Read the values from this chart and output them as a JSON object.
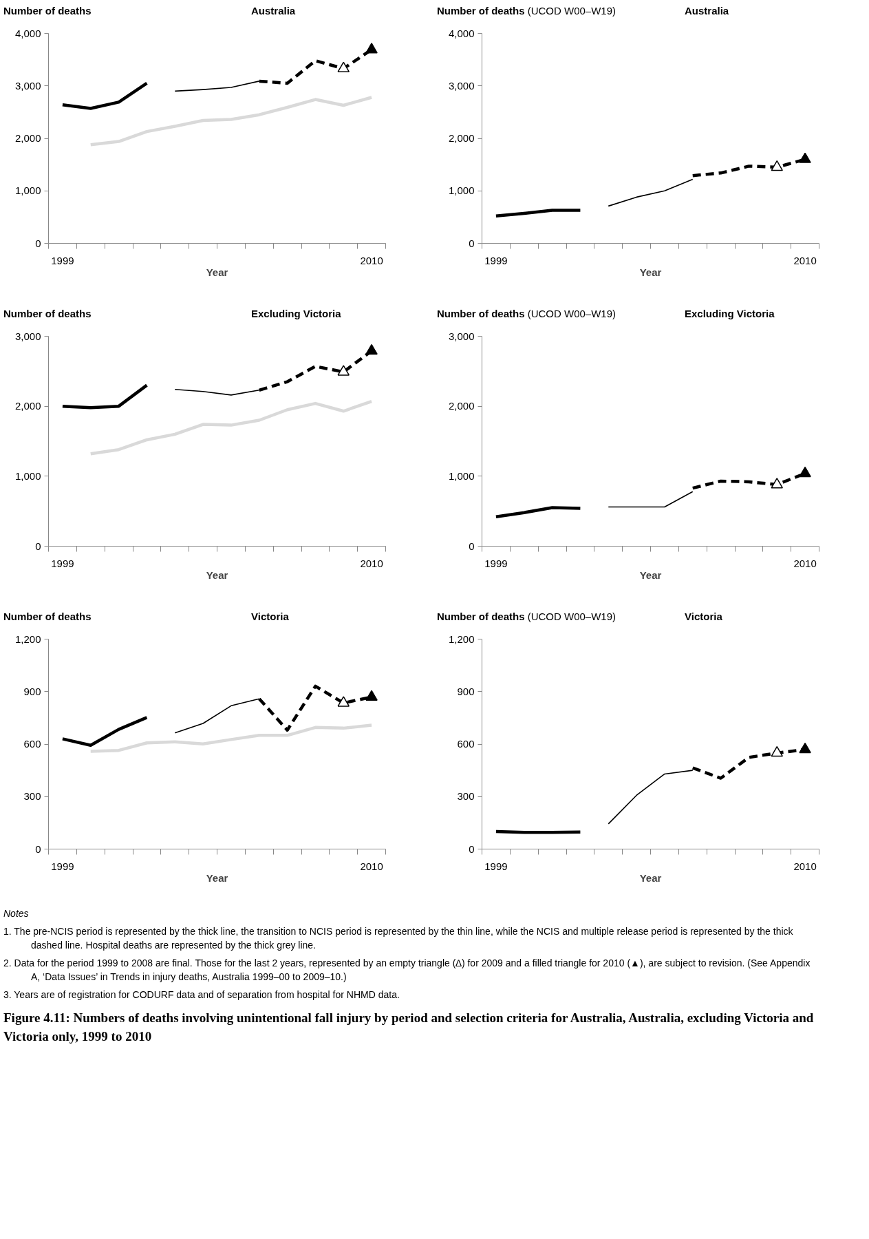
{
  "chart_data": [
    {
      "type": "line",
      "title": "Australia",
      "ylabel": "Number of deaths",
      "xlabel": "Year",
      "x": [
        1999,
        2000,
        2001,
        2002,
        2003,
        2004,
        2005,
        2006,
        2007,
        2008,
        2009,
        2010
      ],
      "xlim": [
        1998.5,
        2010.5
      ],
      "xticks": [
        {
          "value": 1998.5,
          "label": null
        },
        {
          "value": 1999,
          "label": "1999"
        },
        {
          "value": 1999.5,
          "label": null
        },
        {
          "value": 2000.5,
          "label": null
        },
        {
          "value": 2001.5,
          "label": null
        },
        {
          "value": 2002.5,
          "label": null
        },
        {
          "value": 2003.5,
          "label": null
        },
        {
          "value": 2004.5,
          "label": null
        },
        {
          "value": 2005.5,
          "label": null
        },
        {
          "value": 2006.5,
          "label": null
        },
        {
          "value": 2007.5,
          "label": null
        },
        {
          "value": 2008.5,
          "label": null
        },
        {
          "value": 2009.5,
          "label": null
        },
        {
          "value": 2010,
          "label": "2010"
        },
        {
          "value": 2010.5,
          "label": null
        }
      ],
      "ylim": [
        0,
        4000
      ],
      "yticks": [
        0,
        {
          "value": 1000,
          "label": "1,000"
        },
        {
          "value": 2000,
          "label": "2,000"
        },
        {
          "value": 3000,
          "label": "3,000"
        },
        {
          "value": 4000,
          "label": "4,000"
        }
      ],
      "series": [
        {
          "color": "#000000",
          "line_style": "solid",
          "values": [
            2640,
            2570,
            2690,
            3050,
            null,
            null,
            null,
            null,
            null,
            null,
            null,
            null
          ]
        },
        {
          "color": "#000000",
          "line_style": "solid",
          "values": [
            null,
            null,
            null,
            null,
            2900,
            2930,
            2970,
            3090,
            null,
            null,
            null,
            null
          ]
        },
        {
          "color": "#d9d9d9",
          "line_style": "solid",
          "values": [
            null,
            1880,
            1940,
            2130,
            2230,
            2340,
            2360,
            2450,
            2590,
            2740,
            2630,
            2780
          ]
        },
        {
          "color": "#000000",
          "line_style": "dashed",
          "values": [
            null,
            null,
            null,
            null,
            null,
            null,
            null,
            3090,
            3050,
            3480,
            3330,
            3690
          ]
        },
        {
          "type": "scatter",
          "color": "#ffffff",
          "marker": "triangle",
          "values": [
            null,
            null,
            null,
            null,
            null,
            null,
            null,
            null,
            null,
            null,
            3330,
            null
          ]
        },
        {
          "type": "scatter",
          "color": "#000000",
          "marker": "triangle",
          "values": [
            null,
            null,
            null,
            null,
            null,
            null,
            null,
            null,
            null,
            null,
            null,
            3690
          ]
        }
      ]
    },
    {
      "type": "line",
      "title": "Australia",
      "ylabel": "Number of deaths (UCOD W00–W19)",
      "xlabel": "Year",
      "x": [
        1999,
        2000,
        2001,
        2002,
        2003,
        2004,
        2005,
        2006,
        2007,
        2008,
        2009,
        2010
      ],
      "xlim": [
        1998.5,
        2010.5
      ],
      "xticks": [
        {
          "value": 1998.5,
          "label": null
        },
        {
          "value": 1999,
          "label": "1999"
        },
        {
          "value": 1999.5,
          "label": null
        },
        {
          "value": 2000.5,
          "label": null
        },
        {
          "value": 2001.5,
          "label": null
        },
        {
          "value": 2002.5,
          "label": null
        },
        {
          "value": 2003.5,
          "label": null
        },
        {
          "value": 2004.5,
          "label": null
        },
        {
          "value": 2005.5,
          "label": null
        },
        {
          "value": 2006.5,
          "label": null
        },
        {
          "value": 2007.5,
          "label": null
        },
        {
          "value": 2008.5,
          "label": null
        },
        {
          "value": 2009.5,
          "label": null
        },
        {
          "value": 2010,
          "label": "2010"
        },
        {
          "value": 2010.5,
          "label": null
        }
      ],
      "ylim": [
        0,
        4000
      ],
      "yticks": [
        0,
        {
          "value": 1000,
          "label": "1,000"
        },
        {
          "value": 2000,
          "label": "2,000"
        },
        {
          "value": 3000,
          "label": "3,000"
        },
        {
          "value": 4000,
          "label": "4,000"
        }
      ],
      "series": [
        {
          "color": "#000000",
          "line_style": "solid",
          "values": [
            520,
            570,
            630,
            630,
            null,
            null,
            null,
            null,
            null,
            null,
            null,
            null
          ]
        },
        {
          "color": "#000000",
          "line_style": "solid",
          "values": [
            null,
            null,
            null,
            null,
            710,
            880,
            1000,
            1220,
            null,
            null,
            null,
            null
          ]
        },
        {
          "color": "#000000",
          "line_style": "dashed",
          "values": [
            null,
            null,
            null,
            null,
            null,
            null,
            null,
            1290,
            1340,
            1470,
            1450,
            1600
          ]
        },
        {
          "type": "scatter",
          "color": "#ffffff",
          "marker": "triangle",
          "values": [
            null,
            null,
            null,
            null,
            null,
            null,
            null,
            null,
            null,
            null,
            1450,
            null
          ]
        },
        {
          "type": "scatter",
          "color": "#000000",
          "marker": "triangle",
          "values": [
            null,
            null,
            null,
            null,
            null,
            null,
            null,
            null,
            null,
            null,
            null,
            1600
          ]
        }
      ]
    },
    {
      "type": "line",
      "title": "Excluding Victoria",
      "ylabel": "Number of deaths",
      "xlabel": "Year",
      "x": [
        1999,
        2000,
        2001,
        2002,
        2003,
        2004,
        2005,
        2006,
        2007,
        2008,
        2009,
        2010
      ],
      "xlim": [
        1998.5,
        2010.5
      ],
      "xticks": [
        {
          "value": 1998.5,
          "label": null
        },
        {
          "value": 1999,
          "label": "1999"
        },
        {
          "value": 1999.5,
          "label": null
        },
        {
          "value": 2000.5,
          "label": null
        },
        {
          "value": 2001.5,
          "label": null
        },
        {
          "value": 2002.5,
          "label": null
        },
        {
          "value": 2003.5,
          "label": null
        },
        {
          "value": 2004.5,
          "label": null
        },
        {
          "value": 2005.5,
          "label": null
        },
        {
          "value": 2006.5,
          "label": null
        },
        {
          "value": 2007.5,
          "label": null
        },
        {
          "value": 2008.5,
          "label": null
        },
        {
          "value": 2009.5,
          "label": null
        },
        {
          "value": 2010,
          "label": "2010"
        },
        {
          "value": 2010.5,
          "label": null
        }
      ],
      "ylim": [
        0,
        3000
      ],
      "yticks": [
        0,
        {
          "value": 1000,
          "label": "1,000"
        },
        {
          "value": 2000,
          "label": "2,000"
        },
        {
          "value": 3000,
          "label": "3,000"
        }
      ],
      "series": [
        {
          "color": "#000000",
          "line_style": "solid",
          "values": [
            2000,
            1980,
            2000,
            2300,
            null,
            null,
            null,
            null,
            null,
            null,
            null,
            null
          ]
        },
        {
          "color": "#000000",
          "line_style": "solid",
          "values": [
            null,
            null,
            null,
            null,
            2240,
            2210,
            2160,
            2230,
            null,
            null,
            null,
            null
          ]
        },
        {
          "color": "#d9d9d9",
          "line_style": "solid",
          "values": [
            null,
            1320,
            1380,
            1520,
            1600,
            1740,
            1730,
            1800,
            1950,
            2040,
            1930,
            2070
          ]
        },
        {
          "color": "#000000",
          "line_style": "dashed",
          "values": [
            null,
            null,
            null,
            null,
            null,
            null,
            null,
            2230,
            2350,
            2570,
            2490,
            2790
          ]
        },
        {
          "type": "scatter",
          "color": "#ffffff",
          "marker": "triangle",
          "values": [
            null,
            null,
            null,
            null,
            null,
            null,
            null,
            null,
            null,
            null,
            2490,
            null
          ]
        },
        {
          "type": "scatter",
          "color": "#000000",
          "marker": "triangle",
          "values": [
            null,
            null,
            null,
            null,
            null,
            null,
            null,
            null,
            null,
            null,
            null,
            2790
          ]
        }
      ]
    },
    {
      "type": "line",
      "title": "Excluding Victoria",
      "ylabel": "Number of deaths (UCOD W00–W19)",
      "xlabel": "Year",
      "x": [
        1999,
        2000,
        2001,
        2002,
        2003,
        2004,
        2005,
        2006,
        2007,
        2008,
        2009,
        2010
      ],
      "xlim": [
        1998.5,
        2010.5
      ],
      "xticks": [
        {
          "value": 1998.5,
          "label": null
        },
        {
          "value": 1999,
          "label": "1999"
        },
        {
          "value": 1999.5,
          "label": null
        },
        {
          "value": 2000.5,
          "label": null
        },
        {
          "value": 2001.5,
          "label": null
        },
        {
          "value": 2002.5,
          "label": null
        },
        {
          "value": 2003.5,
          "label": null
        },
        {
          "value": 2004.5,
          "label": null
        },
        {
          "value": 2005.5,
          "label": null
        },
        {
          "value": 2006.5,
          "label": null
        },
        {
          "value": 2007.5,
          "label": null
        },
        {
          "value": 2008.5,
          "label": null
        },
        {
          "value": 2009.5,
          "label": null
        },
        {
          "value": 2010,
          "label": "2010"
        },
        {
          "value": 2010.5,
          "label": null
        }
      ],
      "ylim": [
        0,
        3000
      ],
      "yticks": [
        0,
        {
          "value": 1000,
          "label": "1,000"
        },
        {
          "value": 2000,
          "label": "2,000"
        },
        {
          "value": 3000,
          "label": "3,000"
        }
      ],
      "series": [
        {
          "color": "#000000",
          "line_style": "solid",
          "values": [
            420,
            480,
            550,
            540,
            null,
            null,
            null,
            null,
            null,
            null,
            null,
            null
          ]
        },
        {
          "color": "#000000",
          "line_style": "solid",
          "values": [
            null,
            null,
            null,
            null,
            560,
            560,
            560,
            780,
            null,
            null,
            null,
            null
          ]
        },
        {
          "color": "#000000",
          "line_style": "dashed",
          "values": [
            null,
            null,
            null,
            null,
            null,
            null,
            null,
            830,
            930,
            920,
            880,
            1040
          ]
        },
        {
          "type": "scatter",
          "color": "#ffffff",
          "marker": "triangle",
          "values": [
            null,
            null,
            null,
            null,
            null,
            null,
            null,
            null,
            null,
            null,
            880,
            null
          ]
        },
        {
          "type": "scatter",
          "color": "#000000",
          "marker": "triangle",
          "values": [
            null,
            null,
            null,
            null,
            null,
            null,
            null,
            null,
            null,
            null,
            null,
            1040
          ]
        }
      ]
    },
    {
      "type": "line",
      "title": "Victoria",
      "ylabel": "Number of deaths",
      "xlabel": "Year",
      "x": [
        1999,
        2000,
        2001,
        2002,
        2003,
        2004,
        2005,
        2006,
        2007,
        2008,
        2009,
        2010
      ],
      "xlim": [
        1998.5,
        2010.5
      ],
      "xticks": [
        {
          "value": 1998.5,
          "label": null
        },
        {
          "value": 1999,
          "label": "1999"
        },
        {
          "value": 1999.5,
          "label": null
        },
        {
          "value": 2000.5,
          "label": null
        },
        {
          "value": 2001.5,
          "label": null
        },
        {
          "value": 2002.5,
          "label": null
        },
        {
          "value": 2003.5,
          "label": null
        },
        {
          "value": 2004.5,
          "label": null
        },
        {
          "value": 2005.5,
          "label": null
        },
        {
          "value": 2006.5,
          "label": null
        },
        {
          "value": 2007.5,
          "label": null
        },
        {
          "value": 2008.5,
          "label": null
        },
        {
          "value": 2009.5,
          "label": null
        },
        {
          "value": 2010,
          "label": "2010"
        },
        {
          "value": 2010.5,
          "label": null
        }
      ],
      "ylim": [
        0,
        1200
      ],
      "yticks": [
        0,
        300,
        600,
        900,
        {
          "value": 1200,
          "label": "1,200"
        }
      ],
      "series": [
        {
          "color": "#000000",
          "line_style": "solid",
          "values": [
            630,
            593,
            684,
            752,
            null,
            null,
            null,
            null,
            null,
            null,
            null,
            null
          ]
        },
        {
          "color": "#000000",
          "line_style": "solid",
          "values": [
            null,
            null,
            null,
            null,
            664,
            718,
            819,
            859,
            null,
            null,
            null,
            null
          ]
        },
        {
          "color": "#d9d9d9",
          "line_style": "solid",
          "values": [
            null,
            559,
            564,
            607,
            613,
            601,
            626,
            650,
            650,
            695,
            691,
            708
          ]
        },
        {
          "color": "#000000",
          "line_style": "dashed",
          "values": [
            null,
            null,
            null,
            null,
            null,
            null,
            null,
            859,
            680,
            931,
            835,
            869
          ]
        },
        {
          "type": "scatter",
          "color": "#ffffff",
          "marker": "triangle",
          "values": [
            null,
            null,
            null,
            null,
            null,
            null,
            null,
            null,
            null,
            null,
            835,
            null
          ]
        },
        {
          "type": "scatter",
          "color": "#000000",
          "marker": "triangle",
          "values": [
            null,
            null,
            null,
            null,
            null,
            null,
            null,
            null,
            null,
            null,
            null,
            869
          ]
        }
      ]
    },
    {
      "type": "line",
      "title": "Victoria",
      "ylabel": "Number of deaths (UCOD W00–W19)",
      "xlabel": "Year",
      "x": [
        1999,
        2000,
        2001,
        2002,
        2003,
        2004,
        2005,
        2006,
        2007,
        2008,
        2009,
        2010
      ],
      "xlim": [
        1998.5,
        2010.5
      ],
      "xticks": [
        {
          "value": 1998.5,
          "label": null
        },
        {
          "value": 1999,
          "label": "1999"
        },
        {
          "value": 1999.5,
          "label": null
        },
        {
          "value": 2000.5,
          "label": null
        },
        {
          "value": 2001.5,
          "label": null
        },
        {
          "value": 2002.5,
          "label": null
        },
        {
          "value": 2003.5,
          "label": null
        },
        {
          "value": 2004.5,
          "label": null
        },
        {
          "value": 2005.5,
          "label": null
        },
        {
          "value": 2006.5,
          "label": null
        },
        {
          "value": 2007.5,
          "label": null
        },
        {
          "value": 2008.5,
          "label": null
        },
        {
          "value": 2009.5,
          "label": null
        },
        {
          "value": 2010,
          "label": "2010"
        },
        {
          "value": 2010.5,
          "label": null
        }
      ],
      "ylim": [
        0,
        1200
      ],
      "yticks": [
        0,
        300,
        600,
        900,
        {
          "value": 1200,
          "label": "1,200"
        }
      ],
      "series": [
        {
          "color": "#000000",
          "line_style": "solid",
          "values": [
            100,
            95,
            95,
            97,
            null,
            null,
            null,
            null,
            null,
            null,
            null,
            null
          ]
        },
        {
          "color": "#000000",
          "line_style": "solid",
          "values": [
            null,
            null,
            null,
            null,
            144,
            307,
            429,
            450,
            null,
            null,
            null,
            null
          ]
        },
        {
          "color": "#000000",
          "line_style": "dashed",
          "values": [
            null,
            null,
            null,
            null,
            null,
            null,
            null,
            464,
            405,
            524,
            549,
            569
          ]
        },
        {
          "type": "scatter",
          "color": "#ffffff",
          "marker": "triangle",
          "values": [
            null,
            null,
            null,
            null,
            null,
            null,
            null,
            null,
            null,
            null,
            549,
            null
          ]
        },
        {
          "type": "scatter",
          "color": "#000000",
          "marker": "triangle",
          "values": [
            null,
            null,
            null,
            null,
            null,
            null,
            null,
            null,
            null,
            null,
            null,
            569
          ]
        }
      ],
      "annotations": [
        "Notes",
        "1. The pre-NCIS period is represented by the thick line, the transition to NCIS period is represented by the thin line, while the NCIS and multiple release period is represented by the thick dashed line. Hospital deaths are represented by the thick grey line.",
        "2. Data for the period 1999 to 2008 are final. Those for the last 2 years, represented by an empty triangle (∆) for 2009 and a filled triangle for 2010 (▲), are subject to revision. (See Appendix A, ‘Data Issues’ in Trends in injury deaths, Australia 1999–00 to 2009–10.)",
        "3. Years are of registration for CODURF data and of separation from hospital for NHMD data.",
        "Figure 4.11: Numbers of deaths involving unintentional fall injury by period and selection criteria for Australia, Australia, excluding Victoria and Victoria only, 1999 to 2010"
      ]
    }
  ]
}
